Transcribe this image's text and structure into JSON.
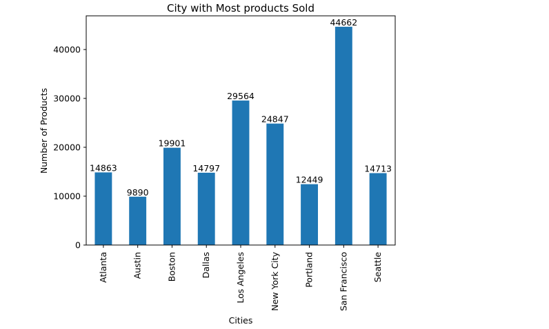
{
  "chart_data": {
    "type": "bar",
    "title": "City with Most products Sold",
    "xlabel": "Cities",
    "ylabel": "Number of Products",
    "categories": [
      "Atlanta",
      "Austin",
      "Boston",
      "Dallas",
      "Los Angeles",
      "New York City",
      "Portland",
      "San Francisco",
      "Seattle"
    ],
    "values": [
      14863,
      9890,
      19901,
      14797,
      29564,
      24847,
      12449,
      44662,
      14713
    ],
    "data_labels": [
      "14863",
      "9890",
      "19901",
      "14797",
      "29564",
      "24847",
      "12449",
      "44662",
      "14713"
    ],
    "yticks": [
      0,
      10000,
      20000,
      30000,
      40000
    ],
    "ylim": [
      0,
      46895
    ],
    "grid": false,
    "legend": "none",
    "bar_color": "#1f77b4"
  }
}
